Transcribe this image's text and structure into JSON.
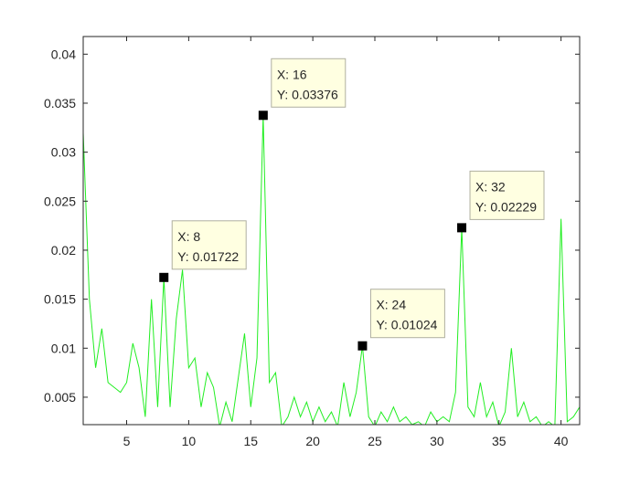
{
  "chart_data": {
    "type": "line",
    "x": [
      1.5,
      2,
      2.5,
      3,
      3.5,
      4,
      4.5,
      5,
      5.5,
      6,
      6.5,
      7,
      7.5,
      8,
      8.5,
      9,
      9.5,
      10,
      10.5,
      11,
      11.5,
      12,
      12.5,
      13,
      13.5,
      14,
      14.5,
      15,
      15.5,
      16,
      16.5,
      17,
      17.5,
      18,
      18.5,
      19,
      19.5,
      20,
      20.5,
      21,
      21.5,
      22,
      22.5,
      23,
      23.5,
      24,
      24.5,
      25,
      25.5,
      26,
      26.5,
      27,
      27.5,
      28,
      28.5,
      29,
      29.5,
      30,
      30.5,
      31,
      31.5,
      32,
      32.5,
      33,
      33.5,
      34,
      34.5,
      35,
      35.5,
      36,
      36.5,
      37,
      37.5,
      38,
      38.5,
      39,
      39.5,
      40,
      40.5,
      41,
      41.5
    ],
    "series": [
      {
        "color": "#22ee22",
        "values": [
          0.032,
          0.015,
          0.008,
          0.012,
          0.0065,
          0.006,
          0.0055,
          0.0065,
          0.0105,
          0.008,
          0.003,
          0.015,
          0.004,
          0.01722,
          0.004,
          0.013,
          0.018,
          0.008,
          0.009,
          0.004,
          0.0075,
          0.006,
          0.002,
          0.0045,
          0.0025,
          0.007,
          0.0115,
          0.004,
          0.009,
          0.03376,
          0.0065,
          0.0075,
          0.002,
          0.003,
          0.005,
          0.003,
          0.0045,
          0.0025,
          0.004,
          0.0025,
          0.0035,
          0.002,
          0.0065,
          0.003,
          0.0055,
          0.01024,
          0.003,
          0.002,
          0.0035,
          0.0025,
          0.004,
          0.0025,
          0.003,
          0.0022,
          0.0025,
          0.002,
          0.0035,
          0.0025,
          0.003,
          0.0025,
          0.0055,
          0.02229,
          0.004,
          0.003,
          0.0065,
          0.003,
          0.0045,
          0.002,
          0.0035,
          0.01,
          0.003,
          0.0045,
          0.0025,
          0.003,
          0.002,
          0.0025,
          0.002,
          0.0232,
          0.0025,
          0.003,
          0.004
        ]
      }
    ],
    "xlim": [
      1.5,
      41.5
    ],
    "ylim": [
      0.0022,
      0.0418
    ],
    "xticks": [
      5,
      10,
      15,
      20,
      25,
      30,
      35,
      40
    ],
    "yticks": [
      0.005,
      0.01,
      0.015,
      0.02,
      0.025,
      0.03,
      0.035,
      0.04
    ],
    "datatips": [
      {
        "x": 8,
        "y": 0.01722,
        "text": [
          "X: 8",
          "Y: 0.01722"
        ]
      },
      {
        "x": 16,
        "y": 0.03376,
        "text": [
          "X: 16",
          "Y: 0.03376"
        ]
      },
      {
        "x": 24,
        "y": 0.01024,
        "text": [
          "X: 24",
          "Y: 0.01024"
        ]
      },
      {
        "x": 32,
        "y": 0.02229,
        "text": [
          "X: 32",
          "Y: 0.02229"
        ]
      }
    ]
  }
}
